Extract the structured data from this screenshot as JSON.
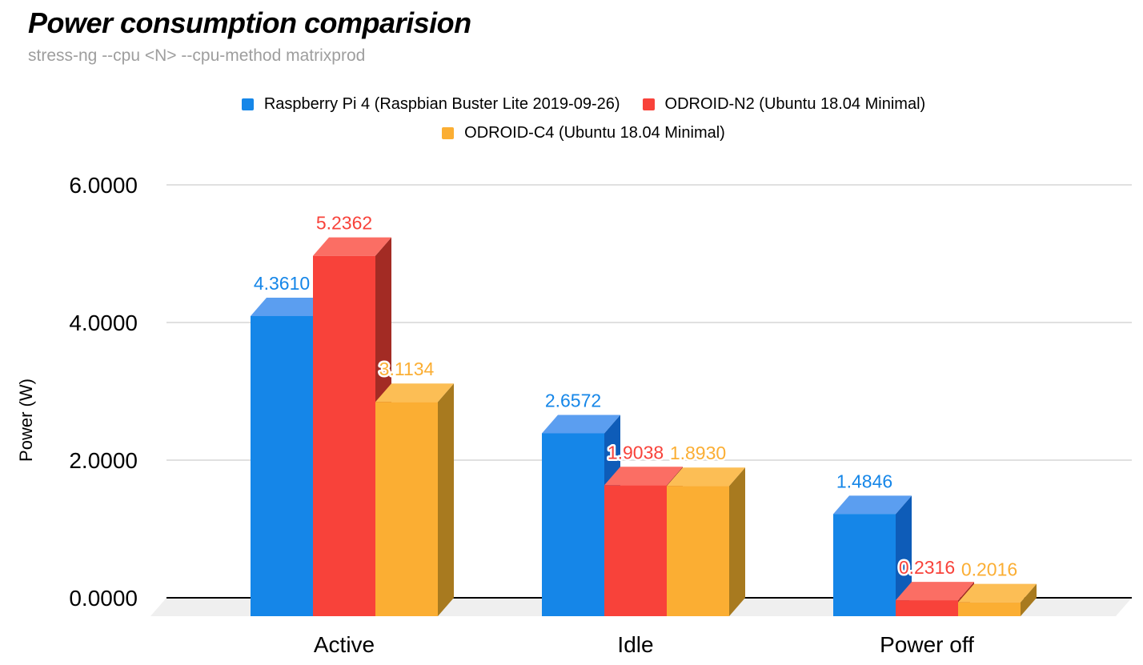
{
  "title": "Power consumption comparision",
  "subtitle": "stress-ng --cpu <N> --cpu-method matrixprod",
  "chart_data": {
    "type": "bar",
    "style": "3d-grouped-columns",
    "title": "Power consumption comparision",
    "subtitle": "stress-ng --cpu <N> --cpu-method matrixprod",
    "xlabel": "",
    "ylabel": "Power (W)",
    "ylim": [
      0,
      6
    ],
    "yticks": [
      "0.0000",
      "2.0000",
      "4.0000",
      "6.0000"
    ],
    "grid": true,
    "legend_position": "top-center",
    "value_label_decimals": 4,
    "categories": [
      "Active",
      "Idle",
      "Power off"
    ],
    "series": [
      {
        "name": "Raspberry Pi 4 (Raspbian Buster Lite 2019-09-26)",
        "color": "#1586E8",
        "color_top": "#5B9EF0",
        "color_side": "#0E5CB8",
        "values": [
          4.361,
          2.6572,
          1.4846
        ]
      },
      {
        "name": "ODROID-N2 (Ubuntu 18.04 Minimal)",
        "color": "#F8423A",
        "color_top": "#FB6E64",
        "color_side": "#A32B24",
        "values": [
          5.2362,
          1.9038,
          0.2316
        ]
      },
      {
        "name": "ODROID-C4 (Ubuntu 18.04 Minimal)",
        "color": "#FBAE33",
        "color_top": "#FCBE55",
        "color_side": "#A87A1F",
        "values": [
          3.1134,
          1.893,
          0.2016
        ]
      }
    ],
    "legend_rows": [
      [
        0,
        1
      ],
      [
        2
      ]
    ]
  },
  "colors": {
    "background": "#FFFFFF",
    "floor": "#EFEFEF",
    "gridline": "#E0E0E0",
    "axis_line": "#000000",
    "subtitle_text": "#9E9E9E",
    "text": "#000000"
  }
}
